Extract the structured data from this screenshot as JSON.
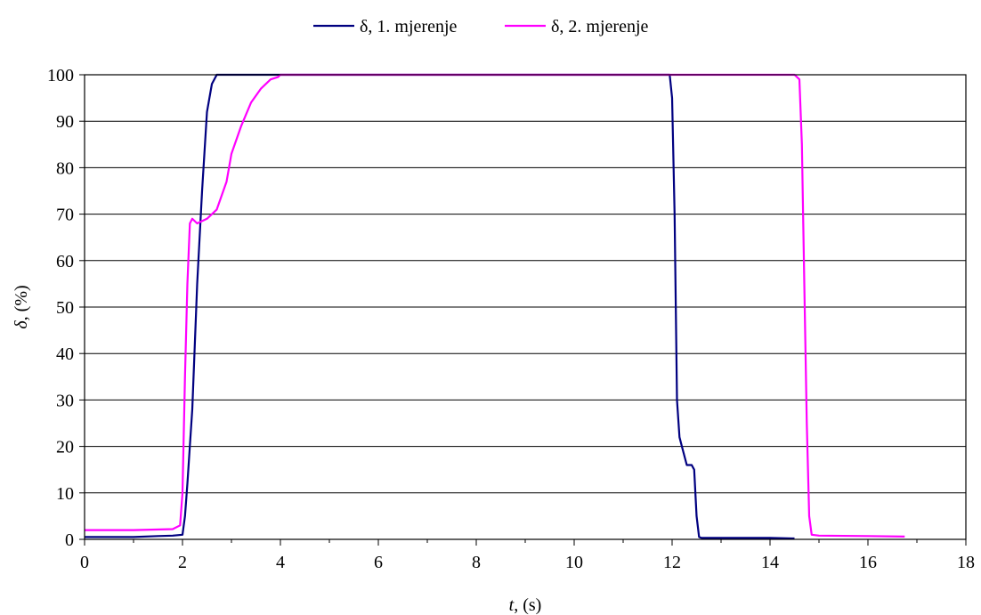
{
  "chart_data": {
    "type": "line",
    "xlabel": {
      "var": "t",
      "unit": ", (s)"
    },
    "ylabel": {
      "var": "δ",
      "unit": ", (%)"
    },
    "xlim": [
      0,
      18
    ],
    "ylim": [
      0,
      100
    ],
    "x_ticks": [
      0,
      2,
      4,
      6,
      8,
      10,
      12,
      14,
      16,
      18
    ],
    "y_ticks": [
      0,
      10,
      20,
      30,
      40,
      50,
      60,
      70,
      80,
      90,
      100
    ],
    "grid": "horizontal",
    "legend_position": "top",
    "series": [
      {
        "name": "δ, 1. mjerenje",
        "color": "#000080",
        "x": [
          0,
          1.0,
          1.5,
          1.8,
          2.0,
          2.05,
          2.1,
          2.2,
          2.3,
          2.4,
          2.5,
          2.6,
          2.7,
          2.75,
          3.0,
          6.0,
          10.0,
          11.95,
          12.0,
          12.05,
          12.1,
          12.15,
          12.2,
          12.3,
          12.4,
          12.45,
          12.5,
          12.55,
          12.6,
          13.0,
          13.5,
          14.0,
          14.5
        ],
        "y": [
          0.5,
          0.5,
          0.7,
          0.8,
          1.0,
          5,
          12,
          28,
          55,
          75,
          92,
          98,
          100,
          100,
          100,
          100,
          100,
          100,
          95,
          70,
          30,
          22,
          20,
          16,
          16,
          15,
          5,
          0.5,
          0.3,
          0.3,
          0.3,
          0.3,
          0.2
        ]
      },
      {
        "name": "δ, 2. mjerenje",
        "color": "#FF00FF",
        "x": [
          0,
          1.0,
          1.8,
          1.95,
          2.0,
          2.05,
          2.1,
          2.15,
          2.2,
          2.3,
          2.5,
          2.7,
          2.9,
          3.0,
          3.2,
          3.4,
          3.6,
          3.8,
          3.95,
          4.0,
          6.0,
          10.0,
          14.5,
          14.6,
          14.65,
          14.7,
          14.75,
          14.8,
          14.85,
          15.0,
          16.0,
          16.75
        ],
        "y": [
          2,
          2,
          2.2,
          3,
          10,
          35,
          55,
          68,
          69,
          68,
          69,
          71,
          77,
          83,
          89,
          94,
          97,
          99,
          99.5,
          100,
          100,
          100,
          100,
          99,
          85,
          55,
          25,
          5,
          1,
          0.8,
          0.7,
          0.6
        ]
      }
    ]
  }
}
